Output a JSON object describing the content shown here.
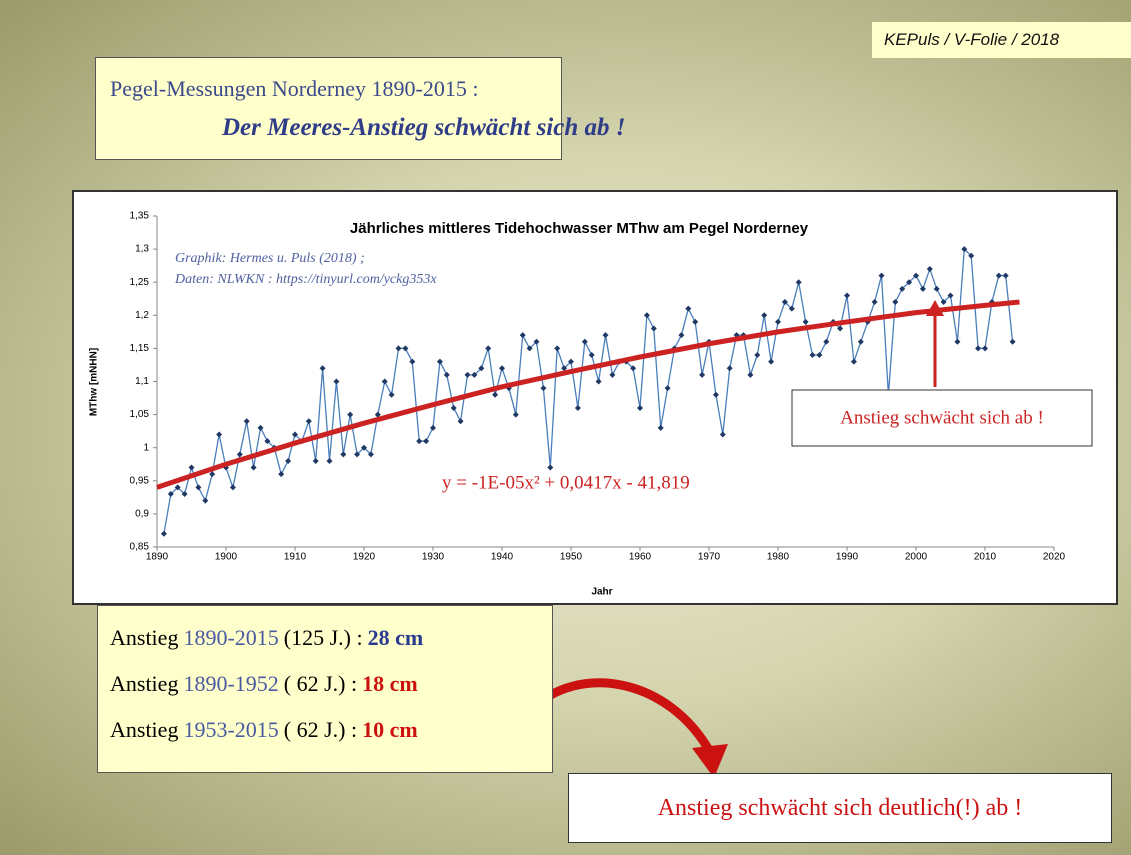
{
  "header": {
    "text": "KEPuls / V-Folie / 2018"
  },
  "title_box": {
    "line1": "Pegel-Messungen Norderney 1890-2015 :",
    "line2": "Der Meeres-Anstieg schwächt sich ab !"
  },
  "chart_data": {
    "type": "line",
    "title": "Jährliches mittleres Tidehochwasser MThw am Pegel Norderney",
    "credits": [
      "Graphik: Hermes u. Puls (2018) ;",
      "Daten: NLWKN : https://tinyurl.com/yckg353x"
    ],
    "xlabel": "Jahr",
    "ylabel": "MThw [mNHN]",
    "x": [
      1891,
      1892,
      1893,
      1894,
      1895,
      1896,
      1897,
      1898,
      1899,
      1900,
      1901,
      1902,
      1903,
      1904,
      1905,
      1906,
      1907,
      1908,
      1909,
      1910,
      1911,
      1912,
      1913,
      1914,
      1915,
      1916,
      1917,
      1918,
      1919,
      1920,
      1921,
      1922,
      1923,
      1924,
      1925,
      1926,
      1927,
      1928,
      1929,
      1930,
      1931,
      1932,
      1933,
      1934,
      1935,
      1936,
      1937,
      1938,
      1939,
      1940,
      1941,
      1942,
      1943,
      1944,
      1945,
      1946,
      1947,
      1948,
      1949,
      1950,
      1951,
      1952,
      1953,
      1954,
      1955,
      1956,
      1957,
      1958,
      1959,
      1960,
      1961,
      1962,
      1963,
      1964,
      1965,
      1966,
      1967,
      1968,
      1969,
      1970,
      1971,
      1972,
      1973,
      1974,
      1975,
      1976,
      1977,
      1978,
      1979,
      1980,
      1981,
      1982,
      1983,
      1984,
      1985,
      1986,
      1987,
      1988,
      1989,
      1990,
      1991,
      1992,
      1993,
      1994,
      1995,
      1996,
      1997,
      1998,
      1999,
      2000,
      2001,
      2002,
      2003,
      2004,
      2005,
      2006,
      2007,
      2008,
      2009,
      2010,
      2011,
      2012,
      2013,
      2014
    ],
    "series": [
      {
        "name": "MThw",
        "color": "#4a7ebb",
        "marker_color": "#1f3864",
        "values": [
          0.87,
          0.93,
          0.94,
          0.93,
          0.97,
          0.94,
          0.92,
          0.96,
          1.02,
          0.97,
          0.94,
          0.99,
          1.04,
          0.97,
          1.03,
          1.01,
          1.0,
          0.96,
          0.98,
          1.02,
          1.01,
          1.04,
          0.98,
          1.12,
          0.98,
          1.1,
          0.99,
          1.05,
          0.99,
          1.0,
          0.99,
          1.05,
          1.1,
          1.08,
          1.15,
          1.15,
          1.13,
          1.01,
          1.01,
          1.03,
          1.13,
          1.11,
          1.06,
          1.04,
          1.11,
          1.11,
          1.12,
          1.15,
          1.08,
          1.12,
          1.09,
          1.05,
          1.17,
          1.15,
          1.16,
          1.09,
          0.97,
          1.15,
          1.12,
          1.13,
          1.06,
          1.16,
          1.14,
          1.1,
          1.17,
          1.11,
          1.13,
          1.13,
          1.12,
          1.06,
          1.2,
          1.18,
          1.03,
          1.09,
          1.15,
          1.17,
          1.21,
          1.19,
          1.11,
          1.16,
          1.08,
          1.02,
          1.12,
          1.17,
          1.17,
          1.11,
          1.14,
          1.2,
          1.13,
          1.19,
          1.22,
          1.21,
          1.25,
          1.19,
          1.14,
          1.14,
          1.16,
          1.19,
          1.18,
          1.23,
          1.13,
          1.16,
          1.19,
          1.22,
          1.26,
          1.08,
          1.22,
          1.24,
          1.25,
          1.26,
          1.24,
          1.27,
          1.24,
          1.22,
          1.23,
          1.16,
          1.3,
          1.29,
          1.15,
          1.15,
          1.22,
          1.26,
          1.26,
          1.16
        ]
      }
    ],
    "trendline": {
      "color": "#cc2222",
      "equation": "y = -1E-05x² + 0,0417x - 41,819",
      "x": [
        1890,
        1900,
        1910,
        1920,
        1930,
        1940,
        1950,
        1960,
        1970,
        1980,
        1990,
        2000,
        2010,
        2015
      ],
      "values": [
        0.94,
        0.975,
        1.007,
        1.037,
        1.065,
        1.092,
        1.115,
        1.137,
        1.157,
        1.175,
        1.19,
        1.204,
        1.215,
        1.22
      ]
    },
    "annotation": "Anstieg schwächt sich ab !",
    "xlim": [
      1890,
      2020
    ],
    "xticks": [
      1890,
      1900,
      1910,
      1920,
      1930,
      1940,
      1950,
      1960,
      1970,
      1980,
      1990,
      2000,
      2010,
      2020
    ],
    "ylim": [
      0.85,
      1.35
    ],
    "yticks": [
      {
        "value": 0.85,
        "label": "0,85"
      },
      {
        "value": 0.9,
        "label": "0,9"
      },
      {
        "value": 0.95,
        "label": "0,95"
      },
      1,
      {
        "value": 1.05,
        "label": "1,05"
      },
      {
        "value": 1.1,
        "label": "1,1"
      },
      {
        "value": 1.15,
        "label": "1,15"
      },
      {
        "value": 1.2,
        "label": "1,2"
      },
      {
        "value": 1.25,
        "label": "1,25"
      },
      {
        "value": 1.3,
        "label": "1,3"
      },
      {
        "value": 1.35,
        "label": "1,35"
      }
    ]
  },
  "summary": {
    "rows": [
      [
        "Anstieg",
        "1890-2015",
        "(125 J.) :",
        "28 cm"
      ],
      [
        "Anstieg",
        "1890-1952",
        "( 62 J.) :",
        "18 cm"
      ],
      [
        "Anstieg",
        "1953-2015",
        "( 62 J.) :",
        "10 cm"
      ]
    ]
  },
  "conclusion": "Anstieg schwächt sich deutlich(!) ab !"
}
